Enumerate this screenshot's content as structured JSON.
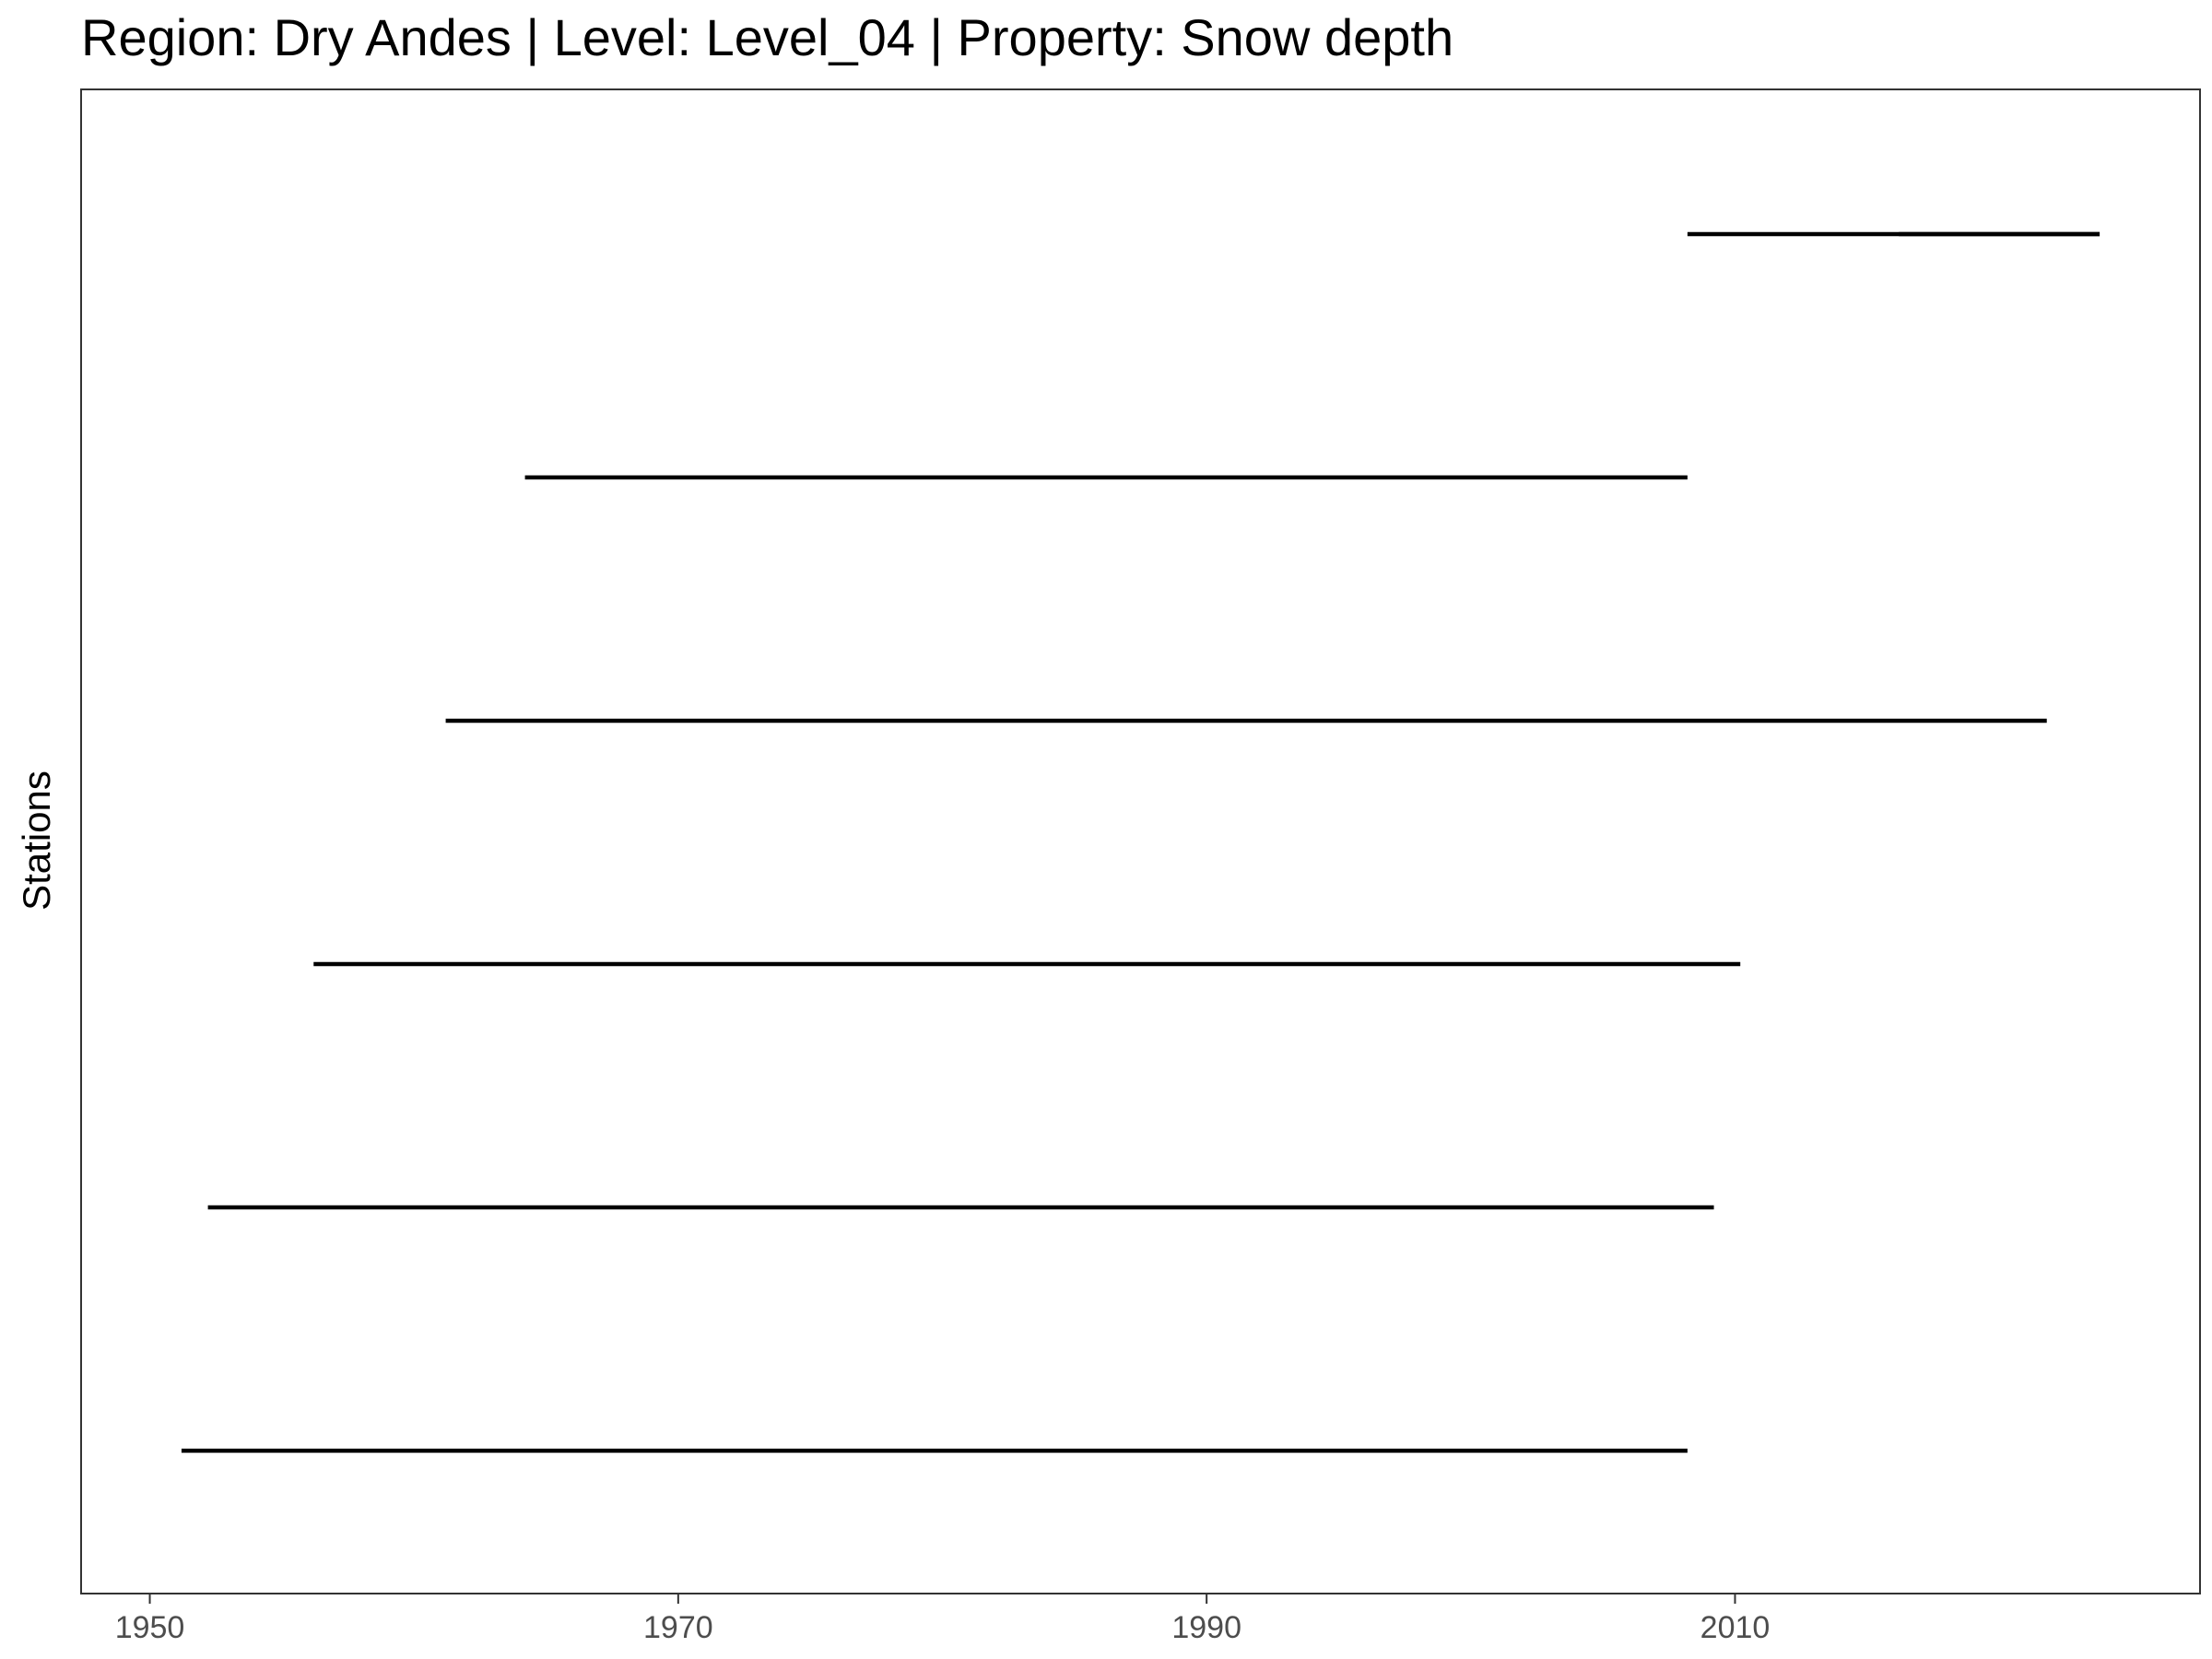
{
  "chart_data": {
    "type": "line",
    "title": "Region: Dry Andes | Level: Level_04 | Property: Snow depth",
    "xlabel": "",
    "ylabel": "Stations",
    "xlim": [
      1947.4,
      2027.6
    ],
    "x_ticks": [
      1950,
      1970,
      1990,
      2010
    ],
    "x_tick_labels": [
      "1950",
      "1970",
      "1990",
      "2010"
    ],
    "grid": false,
    "legend": "none",
    "series": [
      {
        "station_index": 1,
        "segments": [
          [
            1951.2,
            2008.2
          ]
        ]
      },
      {
        "station_index": 2,
        "segments": [
          [
            1952.2,
            2009.2
          ]
        ]
      },
      {
        "station_index": 3,
        "segments": [
          [
            1956.2,
            2010.2
          ]
        ]
      },
      {
        "station_index": 4,
        "segments": [
          [
            1961.2,
            2021.8
          ]
        ]
      },
      {
        "station_index": 5,
        "segments": [
          [
            1964.2,
            2008.2
          ]
        ]
      },
      {
        "station_index": 6,
        "segments": [
          [
            2008.2,
            2023.8
          ],
          [
            2016.2,
            2023.8
          ]
        ]
      }
    ],
    "colors": {
      "line": "#000000",
      "panel_border": "#333333",
      "tick_label": "#4d4d4d"
    }
  }
}
